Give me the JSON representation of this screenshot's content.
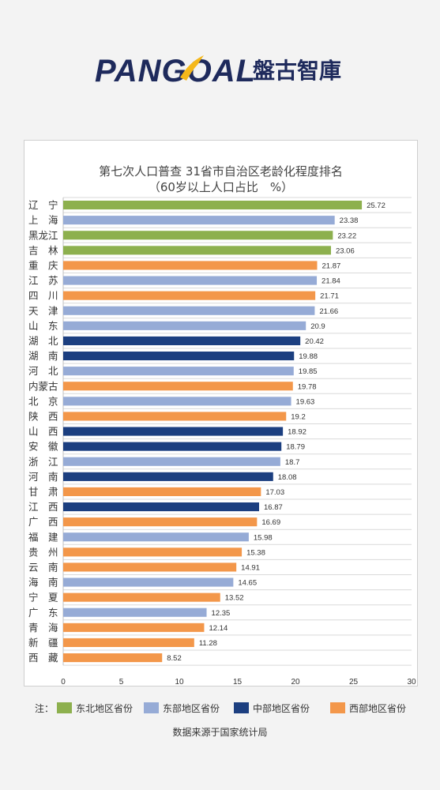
{
  "brand": {
    "name_en": "PANGOAL",
    "name_cn": "盤古智庫"
  },
  "chart_data": {
    "type": "bar",
    "orientation": "horizontal",
    "title": "第七次人口普查 31省市自治区老龄化程度排名",
    "subtitle": "（60岁以上人口占比　%）",
    "xlim": [
      0,
      30
    ],
    "xticks": [
      "0",
      "5",
      "10",
      "15",
      "20",
      "25",
      "30"
    ],
    "grid": true,
    "legend_position": "bottom",
    "series": [
      {
        "name": "东北地区省份",
        "color": "#8db04e"
      },
      {
        "name": "东部地区省份",
        "color": "#96abd6"
      },
      {
        "name": "中部地区省份",
        "color": "#1c3f80"
      },
      {
        "name": "西部地区省份",
        "color": "#f3974a"
      }
    ],
    "categories": [
      "辽　宁",
      "上　海",
      "黑龙江",
      "吉　林",
      "重　庆",
      "江　苏",
      "四　川",
      "天　津",
      "山　东",
      "湖　北",
      "湖　南",
      "河　北",
      "内蒙古",
      "北　京",
      "陕　西",
      "山　西",
      "安　徽",
      "浙　江",
      "河　南",
      "甘　肃",
      "江　西",
      "广　西",
      "福　建",
      "贵　州",
      "云　南",
      "海　南",
      "宁　夏",
      "广　东",
      "青　海",
      "新　疆",
      "西　藏"
    ],
    "values": [
      25.72,
      23.38,
      23.22,
      23.06,
      21.87,
      21.84,
      21.71,
      21.66,
      20.9,
      20.42,
      19.88,
      19.85,
      19.78,
      19.63,
      19.2,
      18.92,
      18.79,
      18.7,
      18.08,
      17.03,
      16.87,
      16.69,
      15.98,
      15.38,
      14.91,
      14.65,
      13.52,
      12.35,
      12.14,
      11.28,
      8.52
    ],
    "value_labels": [
      "25.72",
      "23.38",
      "23.22",
      "23.06",
      "21.87",
      "21.84",
      "21.71",
      "21.66",
      "20.9",
      "20.42",
      "19.88",
      "19.85",
      "19.78",
      "19.63",
      "19.2",
      "18.92",
      "18.79",
      "18.7",
      "18.08",
      "17.03",
      "16.87",
      "16.69",
      "15.98",
      "15.38",
      "14.91",
      "14.65",
      "13.52",
      "12.35",
      "12.14",
      "11.28",
      "8.52"
    ],
    "region_index": [
      0,
      1,
      0,
      0,
      3,
      1,
      3,
      1,
      1,
      2,
      2,
      1,
      3,
      1,
      3,
      2,
      2,
      1,
      2,
      3,
      2,
      3,
      1,
      3,
      3,
      1,
      3,
      1,
      3,
      3,
      3
    ]
  },
  "legend": {
    "label": "注：",
    "items": [
      "东北地区省份",
      "东部地区省份",
      "中部地区省份",
      "西部地区省份"
    ]
  },
  "source": "数据来源于国家统计局"
}
